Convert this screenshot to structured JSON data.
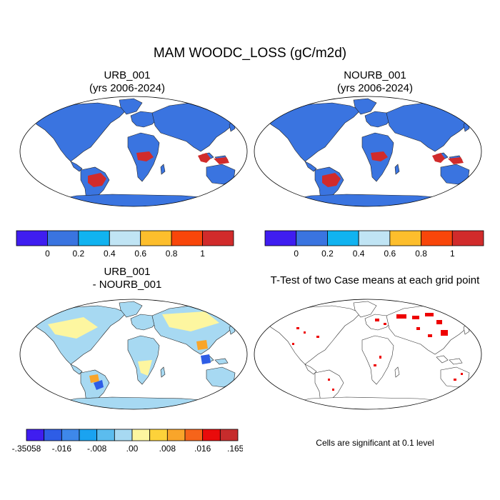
{
  "title": "MAM WOODC_LOSS (gC/m2d)",
  "panels": [
    {
      "line1": "URB_001",
      "line2": "(yrs 2006-2024)"
    },
    {
      "line1": "NOURB_001",
      "line2": "(yrs 2006-2024)"
    },
    {
      "line1": "URB_001",
      "line2": "- NOURB_001"
    },
    {
      "line1": "T-Test of two Case means at each grid point",
      "line2": ""
    }
  ],
  "colorbar_top": {
    "colors": [
      "#3f1df0",
      "#3a74e0",
      "#11b3f0",
      "#c0e4f4",
      "#fdbe2c",
      "#f8460a",
      "#d12b2b"
    ],
    "labels": [
      "0",
      "0.2",
      "0.4",
      "0.6",
      "0.8",
      "1"
    ]
  },
  "colorbar_diff": {
    "colors": [
      "#3f1df0",
      "#2e5de6",
      "#3e88ea",
      "#1aa3f0",
      "#5bbcee",
      "#a7d9f2",
      "#fdf6a0",
      "#fdd23a",
      "#f9a52a",
      "#f6641a",
      "#e90b0b",
      "#c62c2c"
    ],
    "labels": [
      "-.35058",
      "-.016",
      "-.008",
      ".00",
      ".008",
      ".016",
      ".1654"
    ]
  },
  "significance_note": "Cells are significant at 0.1 level",
  "colors": {
    "land": "#3a74e0",
    "diff_land": "#a7d9f2",
    "signif": "#ee0000",
    "tropics": "#d12b2b"
  }
}
